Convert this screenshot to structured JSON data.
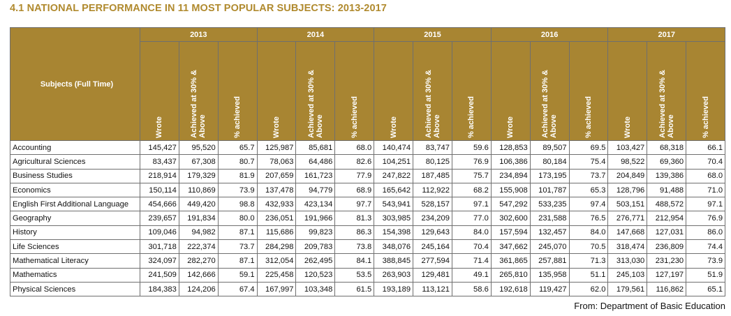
{
  "title": "4.1   NATIONAL PERFORMANCE IN 11 MOST POPULAR SUBJECTS: 2013-2017",
  "header": {
    "subjects_label": "Subjects (Full Time)",
    "years": [
      "2013",
      "2014",
      "2015",
      "2016",
      "2017"
    ],
    "sub_columns": [
      "Wrote",
      "Achieved at 30% &\nAbove",
      "% achieved"
    ]
  },
  "rows": [
    {
      "subject": "Accounting",
      "values": [
        "145,427",
        "95,520",
        "65.7",
        "125,987",
        "85,681",
        "68.0",
        "140,474",
        "83,747",
        "59.6",
        "128,853",
        "89,507",
        "69.5",
        "103,427",
        "68,318",
        "66.1"
      ]
    },
    {
      "subject": "Agricultural Sciences",
      "values": [
        "83,437",
        "67,308",
        "80.7",
        "78,063",
        "64,486",
        "82.6",
        "104,251",
        "80,125",
        "76.9",
        "106,386",
        "80,184",
        "75.4",
        "98,522",
        "69,360",
        "70.4"
      ]
    },
    {
      "subject": "Business Studies",
      "values": [
        "218,914",
        "179,329",
        "81.9",
        "207,659",
        "161,723",
        "77.9",
        "247,822",
        "187,485",
        "75.7",
        "234,894",
        "173,195",
        "73.7",
        "204,849",
        "139,386",
        "68.0"
      ]
    },
    {
      "subject": "Economics",
      "values": [
        "150,114",
        "110,869",
        "73.9",
        "137,478",
        "94,779",
        "68.9",
        "165,642",
        "112,922",
        "68.2",
        "155,908",
        "101,787",
        "65.3",
        "128,796",
        "91,488",
        "71.0"
      ]
    },
    {
      "subject": "English First Additional Language",
      "values": [
        "454,666",
        "449,420",
        "98.8",
        "432,933",
        "423,134",
        "97.7",
        "543,941",
        "528,157",
        "97.1",
        "547,292",
        "533,235",
        "97.4",
        "503,151",
        "488,572",
        "97.1"
      ]
    },
    {
      "subject": "Geography",
      "values": [
        "239,657",
        "191,834",
        "80.0",
        "236,051",
        "191,966",
        "81.3",
        "303,985",
        "234,209",
        "77.0",
        "302,600",
        "231,588",
        "76.5",
        "276,771",
        "212,954",
        "76.9"
      ]
    },
    {
      "subject": "History",
      "values": [
        "109,046",
        "94,982",
        "87.1",
        "115,686",
        "99,823",
        "86.3",
        "154,398",
        "129,643",
        "84.0",
        "157,594",
        "132,457",
        "84.0",
        "147,668",
        "127,031",
        "86.0"
      ]
    },
    {
      "subject": "Life Sciences",
      "values": [
        "301,718",
        "222,374",
        "73.7",
        "284,298",
        "209,783",
        "73.8",
        "348,076",
        "245,164",
        "70.4",
        "347,662",
        "245,070",
        "70.5",
        "318,474",
        "236,809",
        "74.4"
      ]
    },
    {
      "subject": "Mathematical Literacy",
      "values": [
        "324,097",
        "282,270",
        "87.1",
        "312,054",
        "262,495",
        "84.1",
        "388,845",
        "277,594",
        "71.4",
        "361,865",
        "257,881",
        "71.3",
        "313,030",
        "231,230",
        "73.9"
      ]
    },
    {
      "subject": "Mathematics",
      "values": [
        "241,509",
        "142,666",
        "59.1",
        "225,458",
        "120,523",
        "53.5",
        "263,903",
        "129,481",
        "49.1",
        "265,810",
        "135,958",
        "51.1",
        "245,103",
        "127,197",
        "51.9"
      ]
    },
    {
      "subject": "Physical Sciences",
      "values": [
        "184,383",
        "124,206",
        "67.4",
        "167,997",
        "103,348",
        "61.5",
        "193,189",
        "113,121",
        "58.6",
        "192,618",
        "119,427",
        "62.0",
        "179,561",
        "116,862",
        "65.1"
      ]
    }
  ],
  "source": "From: Department of Basic Education",
  "colors": {
    "header_gold": "#a88532",
    "title_gold": "#b08a2e",
    "border": "#6f6f6f"
  }
}
